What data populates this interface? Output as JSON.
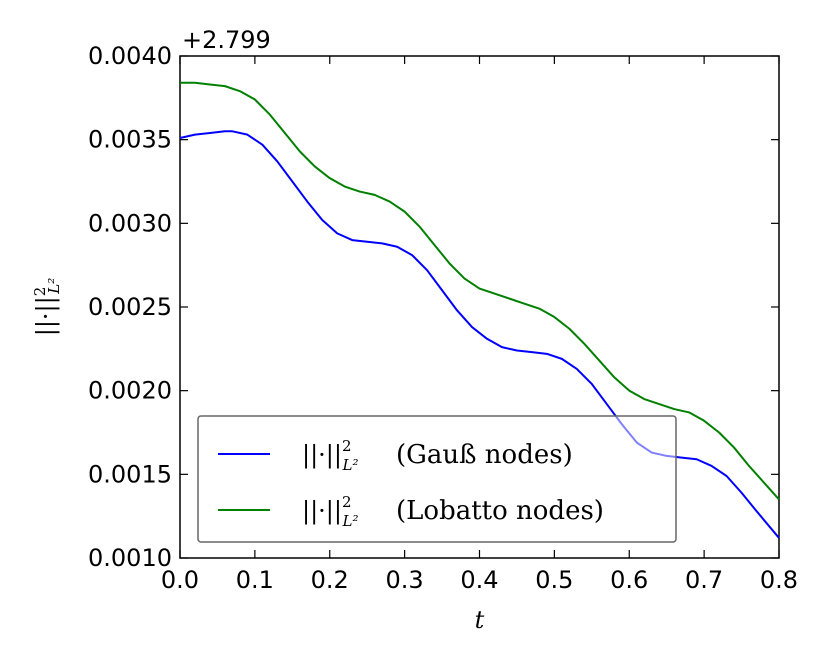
{
  "chart_data": {
    "type": "line",
    "offset_text": "+2.799",
    "xlabel": "t",
    "ylabel": "||·||²_{L²}",
    "xlim": [
      0.0,
      0.8
    ],
    "ylim": [
      0.001,
      0.004
    ],
    "x_ticks": [
      "0.0",
      "0.1",
      "0.2",
      "0.3",
      "0.4",
      "0.5",
      "0.6",
      "0.7",
      "0.8"
    ],
    "y_ticks": [
      "0.0010",
      "0.0015",
      "0.0020",
      "0.0025",
      "0.0030",
      "0.0035",
      "0.0040"
    ],
    "grid": false,
    "legend_position": "lower-left",
    "series": [
      {
        "name": "(Gauß nodes)",
        "color": "#0000ff",
        "x": [
          0.0,
          0.02,
          0.04,
          0.06,
          0.07,
          0.09,
          0.11,
          0.13,
          0.15,
          0.17,
          0.19,
          0.21,
          0.23,
          0.25,
          0.27,
          0.29,
          0.31,
          0.33,
          0.35,
          0.37,
          0.39,
          0.41,
          0.43,
          0.45,
          0.47,
          0.49,
          0.51,
          0.53,
          0.55,
          0.57,
          0.59,
          0.61,
          0.63,
          0.65,
          0.67,
          0.69,
          0.71,
          0.73,
          0.75,
          0.77,
          0.8
        ],
        "y": [
          0.00351,
          0.00353,
          0.00354,
          0.00355,
          0.00355,
          0.00353,
          0.00347,
          0.00337,
          0.00325,
          0.00313,
          0.00302,
          0.00294,
          0.0029,
          0.00289,
          0.00288,
          0.00286,
          0.00281,
          0.00272,
          0.0026,
          0.00248,
          0.00238,
          0.00231,
          0.00226,
          0.00224,
          0.00223,
          0.00222,
          0.00219,
          0.00213,
          0.00204,
          0.00192,
          0.0018,
          0.00169,
          0.00163,
          0.00161,
          0.0016,
          0.00159,
          0.00155,
          0.00149,
          0.00139,
          0.00128,
          0.00112
        ]
      },
      {
        "name": "(Lobatto nodes)",
        "color": "#008000",
        "x": [
          0.0,
          0.02,
          0.04,
          0.06,
          0.08,
          0.1,
          0.12,
          0.14,
          0.16,
          0.18,
          0.2,
          0.22,
          0.24,
          0.26,
          0.28,
          0.3,
          0.32,
          0.34,
          0.36,
          0.38,
          0.4,
          0.42,
          0.44,
          0.46,
          0.48,
          0.5,
          0.52,
          0.54,
          0.56,
          0.58,
          0.6,
          0.62,
          0.64,
          0.66,
          0.68,
          0.7,
          0.72,
          0.74,
          0.76,
          0.78,
          0.8
        ],
        "y": [
          0.00384,
          0.00384,
          0.00383,
          0.00382,
          0.00379,
          0.00374,
          0.00365,
          0.00354,
          0.00343,
          0.00334,
          0.00327,
          0.00322,
          0.00319,
          0.00317,
          0.00313,
          0.00307,
          0.00298,
          0.00287,
          0.00276,
          0.00267,
          0.00261,
          0.00258,
          0.00255,
          0.00252,
          0.00249,
          0.00244,
          0.00237,
          0.00228,
          0.00218,
          0.00208,
          0.002,
          0.00195,
          0.00192,
          0.00189,
          0.00187,
          0.00182,
          0.00175,
          0.00166,
          0.00155,
          0.00145,
          0.00135
        ]
      }
    ]
  }
}
